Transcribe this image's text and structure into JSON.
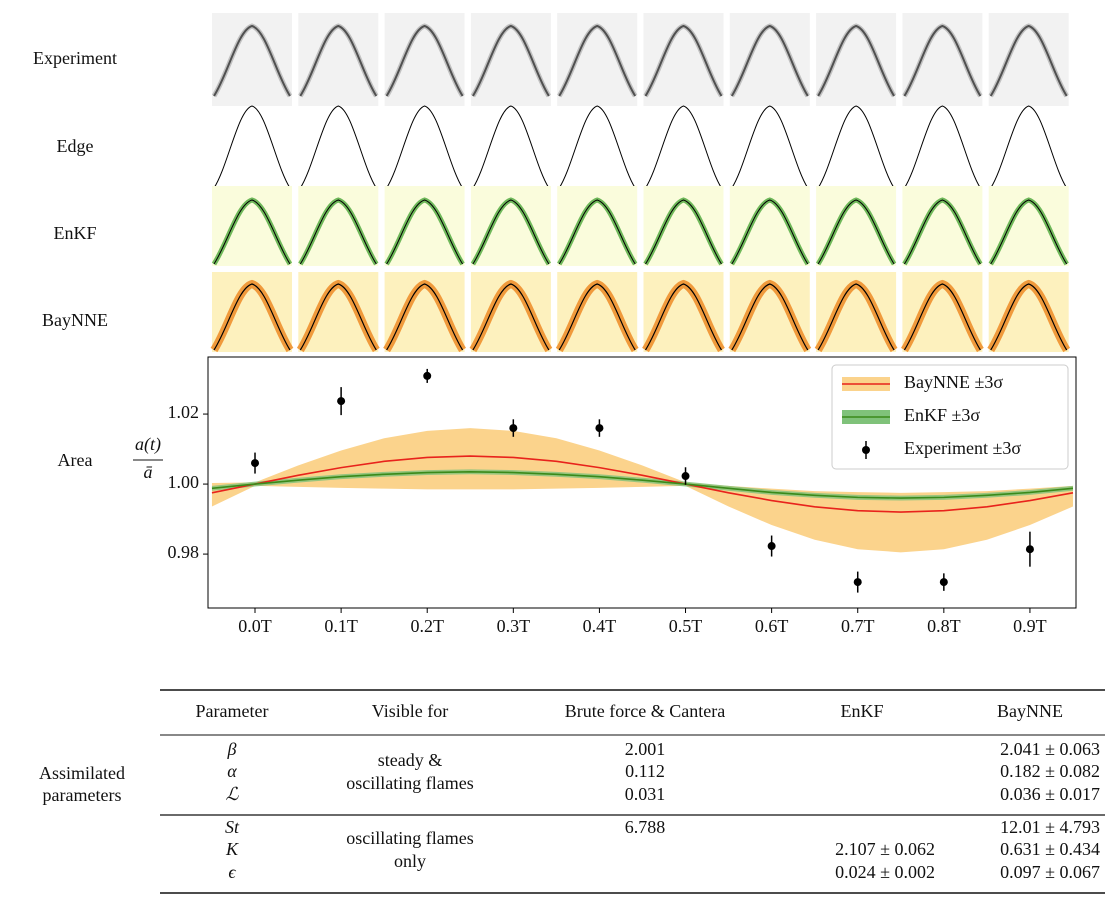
{
  "figure": {
    "row_labels": [
      "Experiment",
      "Edge",
      "EnKF",
      "BayNNE",
      "Area"
    ]
  },
  "chart_data": {
    "type": "line",
    "y_label": {
      "numerator": "a(t)",
      "denominator": "ā"
    },
    "xlim": [
      -0.0546,
      0.9535
    ],
    "ylim": [
      0.9646,
      1.0363
    ],
    "xticks": [
      {
        "value": 0,
        "label": "0.0T"
      },
      {
        "value": 0.1,
        "label": "0.1T"
      },
      {
        "value": 0.2,
        "label": "0.2T"
      },
      {
        "value": 0.3,
        "label": "0.3T"
      },
      {
        "value": 0.4,
        "label": "0.4T"
      },
      {
        "value": 0.5,
        "label": "0.5T"
      },
      {
        "value": 0.6,
        "label": "0.6T"
      },
      {
        "value": 0.7,
        "label": "0.7T"
      },
      {
        "value": 0.8,
        "label": "0.8T"
      },
      {
        "value": 0.9,
        "label": "0.9T"
      }
    ],
    "yticks": [
      0.98,
      {
        "value": 1,
        "label": "1.00"
      },
      1.02
    ],
    "legend": "upper right",
    "series": [
      {
        "name": "BayNNE ±3σ",
        "color": "#e8231c",
        "band_color": "#fbd38c",
        "x": [
          -0.05,
          0,
          0.05,
          0.1,
          0.15,
          0.2,
          0.25,
          0.3,
          0.35,
          0.4,
          0.45,
          0.5,
          0.55,
          0.6,
          0.65,
          0.7,
          0.75,
          0.8,
          0.85,
          0.9,
          0.95
        ],
        "values": [
          0.9975,
          1.0,
          1.0025,
          1.0047,
          1.0065,
          1.0076,
          1.008,
          1.0076,
          1.0065,
          1.0047,
          1.0025,
          1.0,
          0.9975,
          0.9953,
          0.9935,
          0.9924,
          0.992,
          0.9924,
          0.9935,
          0.9953,
          0.9975
        ],
        "lower": [
          0.9936,
          0.9995,
          0.9992,
          0.9989,
          0.9987,
          0.9985,
          0.9985,
          0.9985,
          0.9987,
          0.9989,
          0.9992,
          0.9995,
          0.9936,
          0.9883,
          0.9841,
          0.9814,
          0.9805,
          0.9814,
          0.9841,
          0.9883,
          0.9936
        ],
        "upper": [
          1.0003,
          1.0005,
          1.0053,
          1.0096,
          1.0131,
          1.0152,
          1.016,
          1.0152,
          1.0131,
          1.0096,
          1.0053,
          1.0005,
          0.9995,
          0.9987,
          0.998,
          0.9977,
          0.9975,
          0.9977,
          0.998,
          0.9987,
          0.9995
        ]
      },
      {
        "name": "EnKF ±3σ",
        "color": "#3a8a1a",
        "band_color": "#7fc27a",
        "x": [
          -0.05,
          0,
          0.05,
          0.1,
          0.15,
          0.2,
          0.25,
          0.3,
          0.35,
          0.4,
          0.45,
          0.5,
          0.55,
          0.6,
          0.65,
          0.7,
          0.75,
          0.8,
          0.85,
          0.9,
          0.95
        ],
        "values": [
          0.9988,
          1.0,
          1.0011,
          1.0021,
          1.0028,
          1.0033,
          1.0035,
          1.0033,
          1.0028,
          1.0021,
          1.0011,
          1.0,
          0.9988,
          0.9976,
          0.9968,
          0.9962,
          0.996,
          0.9962,
          0.9968,
          0.9976,
          0.9988
        ],
        "lower": [
          0.9981,
          0.9993,
          1.0004,
          1.0014,
          1.0021,
          1.0026,
          1.0028,
          1.0026,
          1.0021,
          1.0014,
          1.0004,
          0.9993,
          0.9981,
          0.9969,
          0.9961,
          0.9955,
          0.9953,
          0.9955,
          0.9961,
          0.9969,
          0.9981
        ],
        "upper": [
          0.9995,
          1.0007,
          1.0018,
          1.0028,
          1.0035,
          1.004,
          1.0042,
          1.004,
          1.0035,
          1.0028,
          1.0018,
          1.0007,
          0.9995,
          0.9983,
          0.9975,
          0.9969,
          0.9967,
          0.9969,
          0.9975,
          0.9983,
          0.9995
        ]
      },
      {
        "name": "Experiment ±3σ",
        "type": "errorbar",
        "color": "#000000",
        "x": [
          0,
          0.1,
          0.2,
          0.3,
          0.4,
          0.5,
          0.6,
          0.7,
          0.8,
          0.9
        ],
        "values": [
          1.006,
          1.0237,
          1.0309,
          1.016,
          1.016,
          1.0023,
          0.9823,
          0.972,
          0.972,
          0.9814
        ],
        "error": [
          0.003,
          0.004,
          0.002,
          0.0025,
          0.0025,
          0.0025,
          0.003,
          0.003,
          0.0025,
          0.005
        ]
      }
    ]
  },
  "table": {
    "header": [
      "Parameter",
      "Visible for",
      "Brute force & Cantera",
      "EnKF",
      "BayNNE"
    ],
    "row_label": [
      "Assimilated",
      "parameters"
    ],
    "groups": [
      {
        "visible_for": [
          "steady &",
          "oscillating flames"
        ],
        "rows": [
          {
            "parameter": "β",
            "brute_force": "2.001",
            "baynne": "2.041 ± 0.063"
          },
          {
            "parameter": "α",
            "brute_force": "0.112",
            "baynne": "0.182 ± 0.082"
          },
          {
            "parameter": "ℒ",
            "brute_force": "0.031",
            "baynne": "0.036 ± 0.017"
          }
        ]
      },
      {
        "visible_for": [
          "oscillating flames",
          "only"
        ],
        "rows": [
          {
            "parameter": "St",
            "brute_force": "6.788",
            "baynne": "12.01 ± 4.793"
          },
          {
            "parameter": "K",
            "enkf": "2.107 ± 0.062",
            "baynne": "0.631 ± 0.434"
          },
          {
            "parameter": "ϵ",
            "enkf": "0.024 ± 0.002",
            "baynne": "0.097 ± 0.067"
          }
        ]
      }
    ]
  }
}
